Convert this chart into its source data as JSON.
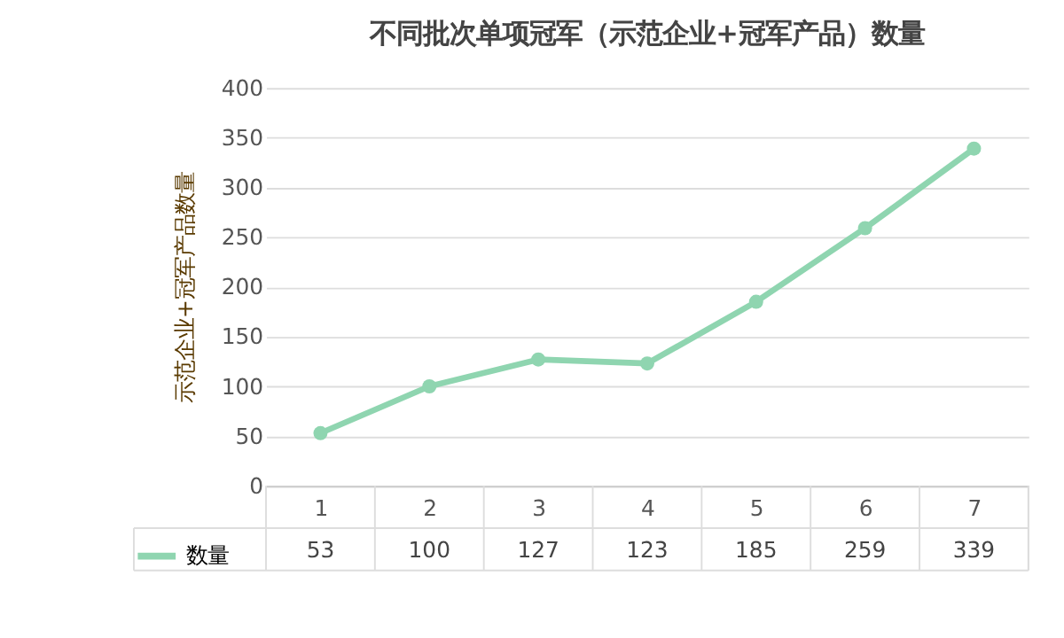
{
  "chart_data": {
    "type": "line",
    "title": "不同批次单项冠军（示范企业+冠军产品）数量",
    "ylabel": "示范企业+冠军产品数量",
    "categories": [
      "1",
      "2",
      "3",
      "4",
      "5",
      "6",
      "7"
    ],
    "series": [
      {
        "name": "数量",
        "color": "#8fd5b0",
        "values": [
          53,
          100,
          127,
          123,
          185,
          259,
          339
        ]
      }
    ],
    "ylim": [
      0,
      400
    ],
    "yticks": [
      0,
      50,
      100,
      150,
      200,
      250,
      300,
      350,
      400
    ],
    "grid": "y",
    "marker": "circle",
    "line_style": "solid",
    "data_labels": true,
    "legend": "bottom left"
  }
}
